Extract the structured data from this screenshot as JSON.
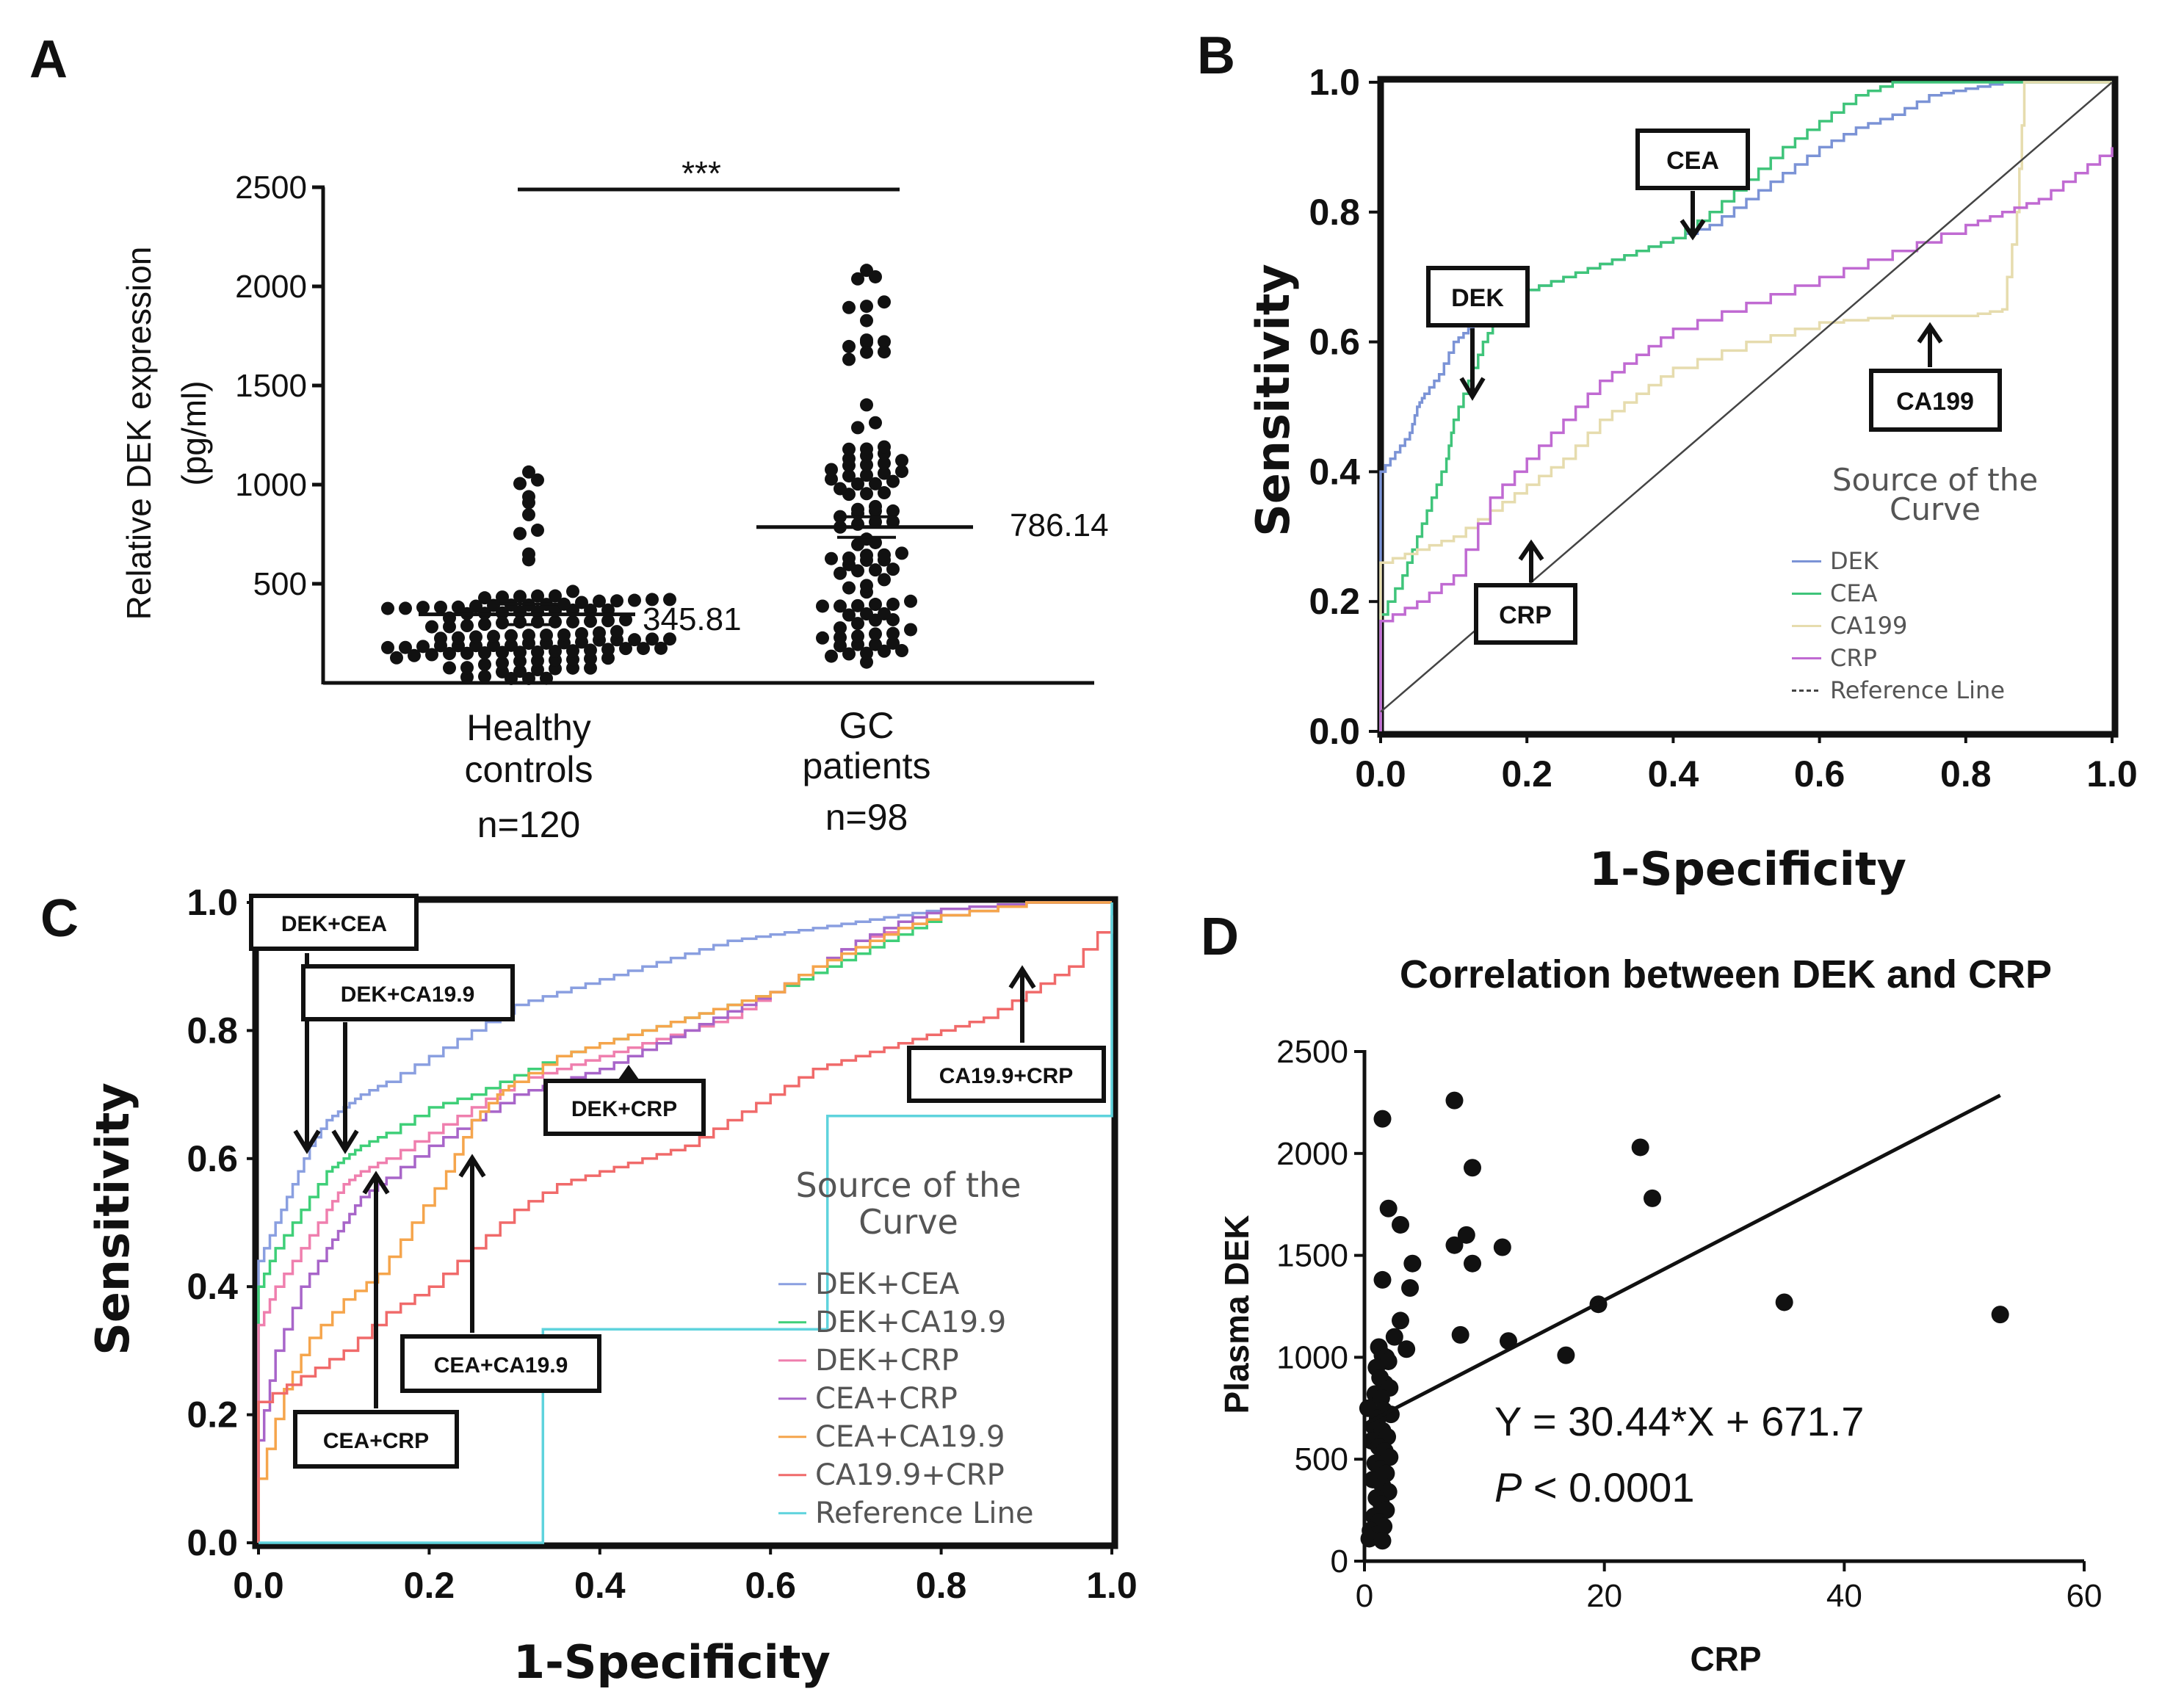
{
  "chart_data": [
    {
      "panel": "A",
      "type": "scatter",
      "subtype": "dot-plot",
      "ylabel_line1": "Relative DEK expression",
      "ylabel_line2": "(pg/ml)",
      "ylim": [
        0,
        2500
      ],
      "yticks": [
        500,
        1000,
        1500,
        2000,
        2500
      ],
      "significance": "***",
      "groups": [
        {
          "label_line1": "Healthy",
          "label_line2": "controls",
          "label_line3": "n=120",
          "mean": 345.81,
          "mean_label": "345.81",
          "n": 120
        },
        {
          "label_line1": "GC",
          "label_line2": "patients",
          "label_line3": "n=98",
          "mean": 786.14,
          "mean_label": "786.14",
          "n": 98
        }
      ]
    },
    {
      "panel": "B",
      "type": "line",
      "subtype": "roc",
      "xlabel": "1-Specificity",
      "ylabel": "Sensitivity",
      "xlim": [
        0,
        1
      ],
      "ylim": [
        0,
        1
      ],
      "xticks": [
        "0.0",
        "0.2",
        "0.4",
        "0.6",
        "0.8",
        "1.0"
      ],
      "yticks": [
        "0.0",
        "0.2",
        "0.4",
        "0.6",
        "0.8",
        "1.0"
      ],
      "legend_title_line1": "Source of the",
      "legend_title_line2": "Curve",
      "series": [
        {
          "name": "DEK",
          "color": "#7b93d6",
          "x": [
            0,
            0,
            0.02,
            0.04,
            0.05,
            0.06,
            0.08,
            0.1,
            0.12,
            0.14,
            0.16,
            0.2,
            0.25,
            0.3,
            0.35,
            0.4,
            0.45,
            0.5,
            0.55,
            0.6,
            0.65,
            0.7,
            0.75,
            0.8,
            0.85,
            0.9,
            1
          ],
          "y": [
            0,
            0.4,
            0.43,
            0.46,
            0.5,
            0.52,
            0.55,
            0.6,
            0.62,
            0.64,
            0.66,
            0.68,
            0.7,
            0.72,
            0.74,
            0.76,
            0.78,
            0.82,
            0.86,
            0.9,
            0.93,
            0.95,
            0.98,
            0.99,
            1,
            1,
            1
          ]
        },
        {
          "name": "CEA",
          "color": "#3fc47a",
          "x": [
            0,
            0,
            0.03,
            0.05,
            0.07,
            0.09,
            0.1,
            0.12,
            0.14,
            0.16,
            0.18,
            0.2,
            0.25,
            0.3,
            0.35,
            0.4,
            0.45,
            0.5,
            0.55,
            0.6,
            0.65,
            0.7,
            0.75,
            0.8,
            1
          ],
          "y": [
            0,
            0.18,
            0.24,
            0.3,
            0.36,
            0.42,
            0.48,
            0.54,
            0.6,
            0.64,
            0.66,
            0.68,
            0.7,
            0.72,
            0.74,
            0.76,
            0.8,
            0.85,
            0.9,
            0.94,
            0.98,
            1,
            1,
            1,
            1
          ]
        },
        {
          "name": "CA199",
          "color": "#e6dcae",
          "x": [
            0,
            0,
            0.05,
            0.1,
            0.15,
            0.2,
            0.25,
            0.3,
            0.35,
            0.4,
            0.5,
            0.6,
            0.7,
            0.8,
            0.85,
            0.87,
            0.88,
            0.9,
            1
          ],
          "y": [
            0,
            0.26,
            0.28,
            0.3,
            0.34,
            0.38,
            0.42,
            0.48,
            0.52,
            0.56,
            0.6,
            0.63,
            0.64,
            0.64,
            0.65,
            0.8,
            1,
            1,
            1
          ]
        },
        {
          "name": "CRP",
          "color": "#c06ad2",
          "x": [
            0,
            0,
            0.05,
            0.1,
            0.15,
            0.2,
            0.25,
            0.3,
            0.35,
            0.4,
            0.5,
            0.6,
            0.7,
            0.8,
            0.85,
            0.9,
            0.95,
            1
          ],
          "y": [
            0,
            0.17,
            0.2,
            0.24,
            0.36,
            0.42,
            0.48,
            0.54,
            0.58,
            0.62,
            0.66,
            0.7,
            0.74,
            0.78,
            0.8,
            0.82,
            0.86,
            0.9
          ]
        },
        {
          "name": "Reference Line",
          "color": "#444444",
          "dashed": true,
          "x": [
            0,
            1
          ],
          "y": [
            0.03,
            1
          ]
        }
      ],
      "annotations": [
        {
          "text": "DEK"
        },
        {
          "text": "CEA"
        },
        {
          "text": "CA199"
        },
        {
          "text": "CRP"
        }
      ]
    },
    {
      "panel": "C",
      "type": "line",
      "subtype": "roc",
      "xlabel": "1-Specificity",
      "ylabel": "Sensitivity",
      "xlim": [
        0,
        1
      ],
      "ylim": [
        0,
        1
      ],
      "xticks": [
        "0.0",
        "0.2",
        "0.4",
        "0.6",
        "0.8",
        "1.0"
      ],
      "yticks": [
        "0.0",
        "0.2",
        "0.4",
        "0.6",
        "0.8",
        "1.0"
      ],
      "legend_title_line1": "Source of the",
      "legend_title_line2": "Curve",
      "series": [
        {
          "name": "DEK+CEA",
          "color": "#8a9fe0",
          "x": [
            0,
            0,
            0.02,
            0.04,
            0.06,
            0.08,
            0.1,
            0.12,
            0.15,
            0.2,
            0.25,
            0.3,
            0.35,
            0.4,
            0.45,
            0.5,
            0.55,
            0.6,
            0.65,
            0.7,
            0.75,
            0.8,
            0.9,
            1
          ],
          "y": [
            0,
            0.44,
            0.5,
            0.56,
            0.62,
            0.66,
            0.68,
            0.7,
            0.72,
            0.76,
            0.8,
            0.84,
            0.86,
            0.88,
            0.9,
            0.92,
            0.94,
            0.95,
            0.96,
            0.97,
            0.98,
            0.99,
            1,
            1
          ]
        },
        {
          "name": "DEK+CA19.9",
          "color": "#3fcf78",
          "x": [
            0,
            0,
            0.02,
            0.05,
            0.08,
            0.1,
            0.12,
            0.15,
            0.2,
            0.25,
            0.3,
            0.35,
            0.4,
            0.45,
            0.5,
            0.55,
            0.6,
            0.65,
            0.7,
            0.75,
            0.8,
            0.9,
            1
          ],
          "y": [
            0,
            0.4,
            0.46,
            0.52,
            0.58,
            0.6,
            0.62,
            0.64,
            0.68,
            0.7,
            0.73,
            0.76,
            0.78,
            0.8,
            0.82,
            0.84,
            0.86,
            0.89,
            0.92,
            0.95,
            0.98,
            1,
            1
          ]
        },
        {
          "name": "DEK+CRP",
          "color": "#ef7fae",
          "x": [
            0,
            0,
            0.02,
            0.05,
            0.08,
            0.1,
            0.12,
            0.15,
            0.2,
            0.25,
            0.3,
            0.35,
            0.4,
            0.45,
            0.5,
            0.55,
            0.6,
            0.65,
            0.7,
            0.75,
            0.8,
            0.9,
            1
          ],
          "y": [
            0,
            0.34,
            0.4,
            0.46,
            0.52,
            0.56,
            0.58,
            0.6,
            0.64,
            0.68,
            0.72,
            0.74,
            0.76,
            0.78,
            0.8,
            0.82,
            0.86,
            0.9,
            0.94,
            0.96,
            0.98,
            1,
            1
          ]
        },
        {
          "name": "CEA+CRP",
          "color": "#a865c9",
          "x": [
            0,
            0,
            0.02,
            0.05,
            0.08,
            0.1,
            0.12,
            0.15,
            0.2,
            0.25,
            0.3,
            0.35,
            0.4,
            0.45,
            0.5,
            0.55,
            0.6,
            0.65,
            0.7,
            0.75,
            0.8,
            0.9,
            1
          ],
          "y": [
            0,
            0.16,
            0.3,
            0.4,
            0.46,
            0.5,
            0.54,
            0.57,
            0.62,
            0.66,
            0.7,
            0.72,
            0.74,
            0.77,
            0.8,
            0.83,
            0.86,
            0.9,
            0.94,
            0.97,
            0.99,
            1,
            1
          ]
        },
        {
          "name": "CEA+CA19.9",
          "color": "#f5a54c",
          "x": [
            0,
            0,
            0.03,
            0.06,
            0.1,
            0.14,
            0.18,
            0.22,
            0.25,
            0.28,
            0.3,
            0.35,
            0.4,
            0.45,
            0.5,
            0.55,
            0.6,
            0.65,
            0.7,
            0.75,
            0.8,
            0.9,
            1
          ],
          "y": [
            0,
            0.1,
            0.24,
            0.32,
            0.38,
            0.42,
            0.5,
            0.58,
            0.66,
            0.7,
            0.72,
            0.76,
            0.78,
            0.8,
            0.82,
            0.84,
            0.86,
            0.9,
            0.93,
            0.96,
            0.98,
            1,
            1
          ]
        },
        {
          "name": "CA19.9+CRP",
          "color": "#f06a6a",
          "x": [
            0,
            0,
            0.05,
            0.1,
            0.15,
            0.2,
            0.25,
            0.3,
            0.35,
            0.4,
            0.45,
            0.5,
            0.55,
            0.6,
            0.65,
            0.7,
            0.75,
            0.8,
            0.85,
            0.9,
            0.95,
            1
          ],
          "y": [
            0,
            0.22,
            0.26,
            0.3,
            0.36,
            0.4,
            0.46,
            0.52,
            0.56,
            0.58,
            0.6,
            0.62,
            0.66,
            0.7,
            0.74,
            0.76,
            0.78,
            0.8,
            0.82,
            0.86,
            0.9,
            0.98
          ]
        },
        {
          "name": "Reference Line",
          "color": "#5fd3dd",
          "x": [
            0,
            1
          ],
          "y": [
            0,
            1
          ]
        }
      ],
      "annotations": [
        {
          "text": "DEK+CEA"
        },
        {
          "text": "DEK+CA19.9"
        },
        {
          "text": "DEK+CRP"
        },
        {
          "text": "CA19.9+CRP"
        },
        {
          "text": "CEA+CA19.9"
        },
        {
          "text": "CEA+CRP"
        }
      ]
    },
    {
      "panel": "D",
      "type": "scatter",
      "title": "Correlation between DEK and CRP",
      "xlabel": "CRP",
      "ylabel": "Plasma DEK",
      "xlim": [
        0,
        60
      ],
      "ylim": [
        0,
        2500
      ],
      "xticks": [
        0,
        20,
        40,
        60
      ],
      "yticks": [
        0,
        500,
        1000,
        1500,
        2000,
        2500
      ],
      "regression": {
        "slope": 30.44,
        "intercept": 671.7,
        "x_range": [
          0,
          53
        ]
      },
      "equation": "Y = 30.44*X + 671.7",
      "p_symbol": "P",
      "p_text": " < 0.0001",
      "points": [
        [
          7.5,
          2260
        ],
        [
          1.5,
          2170
        ],
        [
          23,
          2030
        ],
        [
          9,
          1930
        ],
        [
          2,
          1730
        ],
        [
          24,
          1780
        ],
        [
          3,
          1650
        ],
        [
          8.5,
          1600
        ],
        [
          7.5,
          1550
        ],
        [
          11.5,
          1540
        ],
        [
          4,
          1460
        ],
        [
          9,
          1460
        ],
        [
          1.5,
          1380
        ],
        [
          3.8,
          1340
        ],
        [
          35,
          1270
        ],
        [
          19.5,
          1260
        ],
        [
          53,
          1210
        ],
        [
          3,
          1180
        ],
        [
          2.5,
          1100
        ],
        [
          8,
          1110
        ],
        [
          12,
          1080
        ],
        [
          16.8,
          1010
        ],
        [
          3.5,
          1040
        ],
        [
          1.2,
          1050
        ],
        [
          1.5,
          1010
        ],
        [
          1.8,
          1000
        ],
        [
          2,
          980
        ],
        [
          1,
          950
        ],
        [
          1.3,
          900
        ],
        [
          1.7,
          870
        ],
        [
          2.1,
          850
        ],
        [
          0.9,
          820
        ],
        [
          1.4,
          800
        ],
        [
          0.3,
          750
        ],
        [
          1.6,
          740
        ],
        [
          2.2,
          720
        ],
        [
          1.1,
          700
        ],
        [
          0.8,
          660
        ],
        [
          1.5,
          640
        ],
        [
          1.9,
          610
        ],
        [
          0.6,
          590
        ],
        [
          1.2,
          560
        ],
        [
          1.7,
          540
        ],
        [
          2.1,
          510
        ],
        [
          0.9,
          480
        ],
        [
          1.3,
          450
        ],
        [
          1.8,
          430
        ],
        [
          0.7,
          400
        ],
        [
          1.5,
          370
        ],
        [
          2,
          340
        ],
        [
          1,
          310
        ],
        [
          1.4,
          280
        ],
        [
          1.8,
          250
        ],
        [
          0.8,
          220
        ],
        [
          1.2,
          190
        ],
        [
          1.6,
          170
        ],
        [
          0.5,
          150
        ],
        [
          1,
          130
        ],
        [
          0.4,
          110
        ],
        [
          1.5,
          100
        ]
      ]
    }
  ],
  "panel_labels": [
    "A",
    "B",
    "C",
    "D"
  ]
}
